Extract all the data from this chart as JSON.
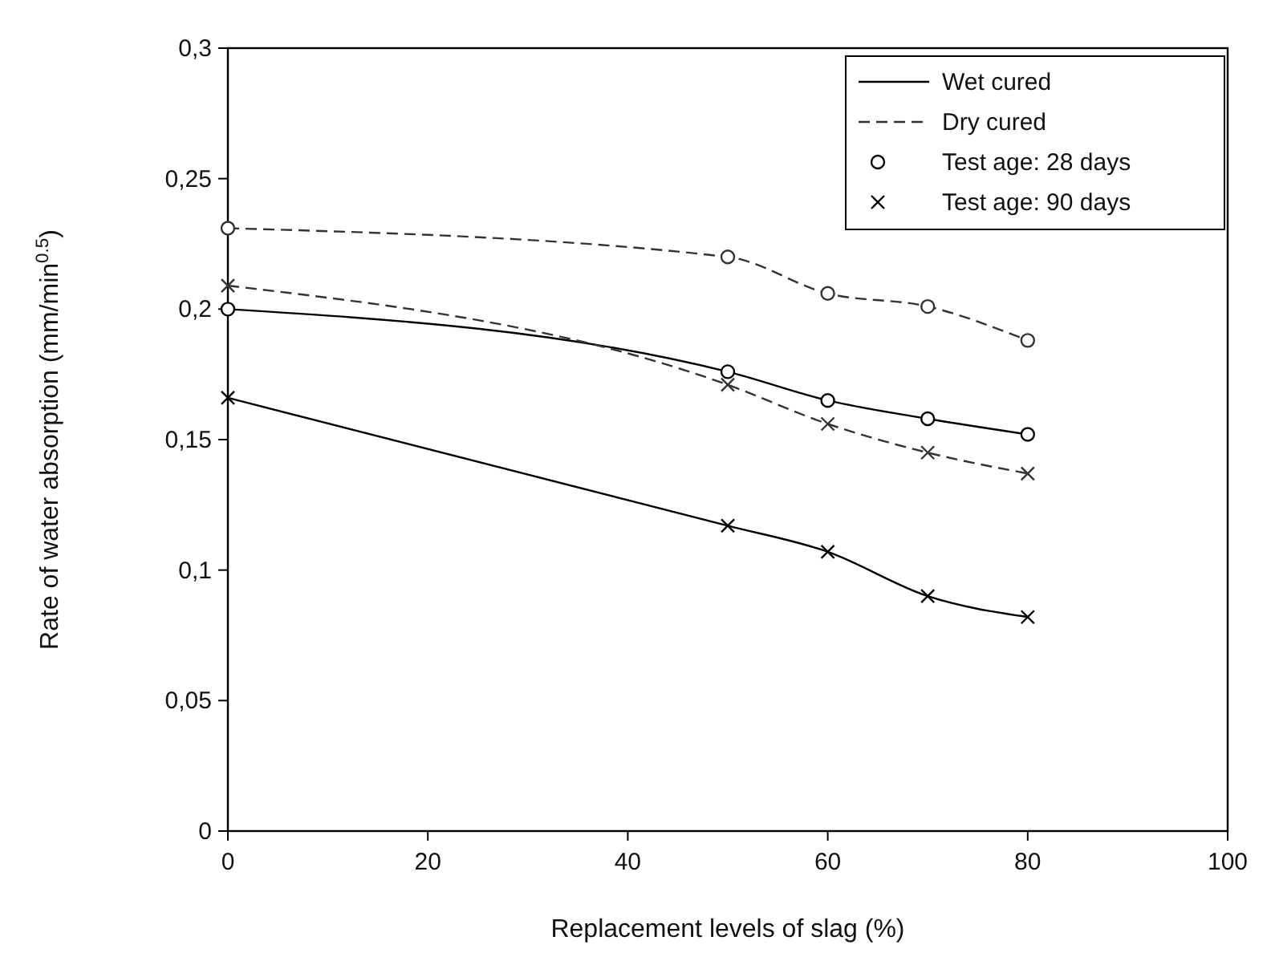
{
  "chart_data": {
    "type": "line",
    "xlabel": "Replacement levels of slag (%)",
    "ylabel": "Rate of water absorption (mm/min$^{0.5}$)",
    "x": [
      0,
      50,
      60,
      70,
      80
    ],
    "series": [
      {
        "color": "#000000",
        "line_style": "solid",
        "marker": "circle",
        "values": [
          0.2,
          0.176,
          0.165,
          0.158,
          0.152
        ]
      },
      {
        "color": "#000000",
        "line_style": "solid",
        "marker": "cross",
        "values": [
          0.166,
          0.117,
          0.107,
          0.09,
          0.082
        ]
      },
      {
        "color": "#333333",
        "line_style": "dashed",
        "marker": "circle",
        "values": [
          0.231,
          0.22,
          0.206,
          0.201,
          0.188
        ]
      },
      {
        "color": "#333333",
        "line_style": "dashed",
        "marker": "cross",
        "values": [
          0.209,
          0.171,
          0.156,
          0.145,
          0.137
        ]
      },
      {
        "name": "Wet cured",
        "color": "#000000",
        "line_style": "solid",
        "marker": "none",
        "values": [
          null,
          null,
          null,
          null,
          null
        ]
      },
      {
        "name": "Dry cured",
        "color": "#333333",
        "line_style": "dashed",
        "marker": "none",
        "values": [
          null,
          null,
          null,
          null,
          null
        ]
      },
      {
        "name": "Test age: 28 days",
        "color": "#000000",
        "line_style": "none",
        "marker": "circle",
        "values": [
          null,
          null,
          null,
          null,
          null
        ]
      },
      {
        "name": "Test age: 90 days",
        "color": "#000000",
        "line_style": "none",
        "marker": "cross",
        "values": [
          null,
          null,
          null,
          null,
          null
        ]
      }
    ],
    "xlim": [
      0,
      100
    ],
    "xticks": [
      0,
      20,
      40,
      60,
      80,
      100
    ],
    "ylim": [
      0,
      0.3
    ],
    "yticks": [
      0,
      {
        "value": 0.05,
        "label": "0,05"
      },
      {
        "value": 0.1,
        "label": "0,1"
      },
      {
        "value": 0.15,
        "label": "0,15"
      },
      {
        "value": 0.2,
        "label": "0,2"
      },
      {
        "value": 0.25,
        "label": "0,25"
      },
      {
        "value": 0.3,
        "label": "0,3"
      }
    ],
    "grid": false,
    "legend": "top right"
  }
}
